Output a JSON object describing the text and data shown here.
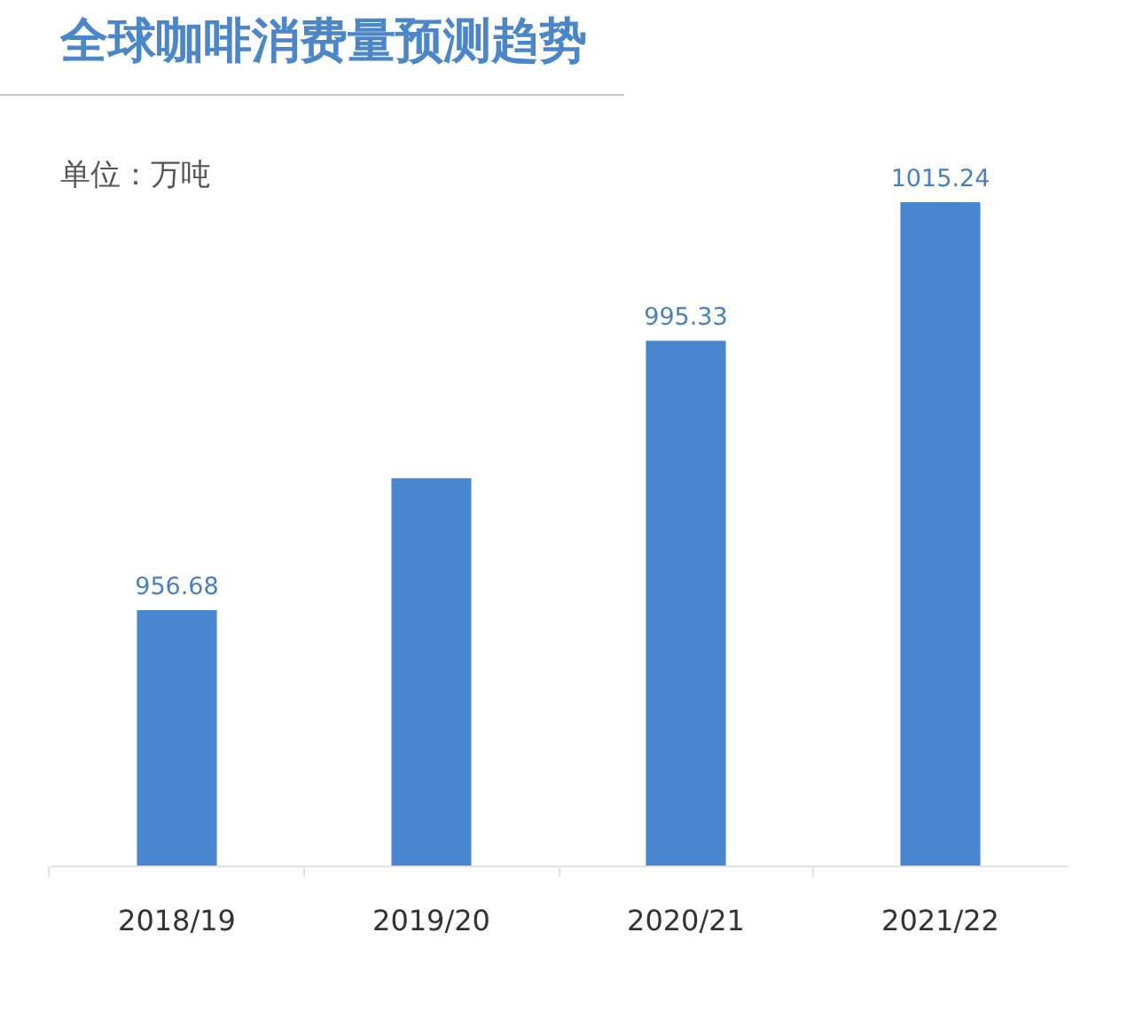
{
  "chart_data": {
    "type": "bar",
    "title": "全球咖啡消费量预测趋势",
    "subtitle": "单位：万吨",
    "categories": [
      "2018/19",
      "2019/20",
      "2020/21",
      "2021/22"
    ],
    "values": [
      956.68,
      975.6,
      995.33,
      1015.24
    ],
    "color": "#4a86d0",
    "value_labels": [
      "956.68",
      null,
      "995.33",
      "1015.24"
    ],
    "ylim": [
      920,
      1015.24
    ],
    "tick_labels": "x"
  }
}
